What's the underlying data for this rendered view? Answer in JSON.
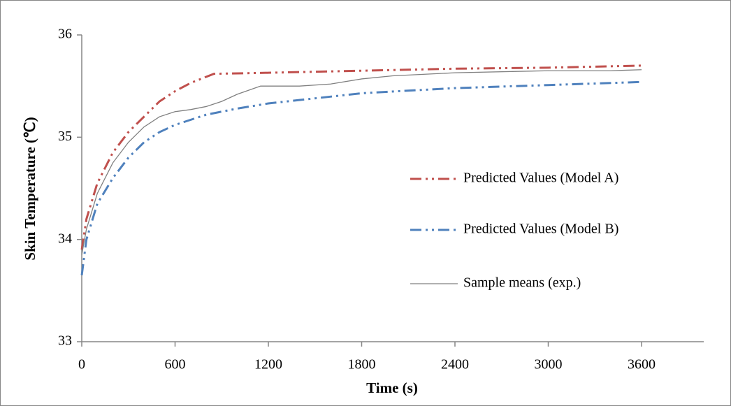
{
  "chart_data": {
    "type": "line",
    "x_label": "Time (s)",
    "y_label": "Skin Temperature  (℃)",
    "xlim": [
      0,
      4000
    ],
    "xticks": [
      0,
      600,
      1200,
      1800,
      2400,
      3000,
      3600
    ],
    "ylim": [
      33,
      36
    ],
    "yticks": [
      33,
      34,
      35,
      36
    ],
    "legend": "right",
    "series": [
      {
        "name": "Predicted Values (Model A)",
        "color": "#c0504d",
        "style": "dash-dot-dot",
        "x": [
          0,
          30,
          100,
          200,
          300,
          400,
          500,
          600,
          700,
          850,
          1200,
          1800,
          2400,
          3000,
          3600
        ],
        "values": [
          33.9,
          34.2,
          34.55,
          34.85,
          35.05,
          35.2,
          35.35,
          35.45,
          35.53,
          35.62,
          35.63,
          35.65,
          35.67,
          35.68,
          35.7
        ]
      },
      {
        "name": "Predicted Values (Model B)",
        "color": "#4f81bd",
        "style": "dash-dot-dot",
        "x": [
          0,
          30,
          100,
          200,
          300,
          400,
          500,
          600,
          800,
          1000,
          1200,
          1800,
          2400,
          3000,
          3600
        ],
        "values": [
          33.65,
          34.0,
          34.35,
          34.6,
          34.8,
          34.95,
          35.05,
          35.12,
          35.22,
          35.28,
          35.33,
          35.43,
          35.48,
          35.51,
          35.54
        ]
      },
      {
        "name": "Sample means (exp.)",
        "color": "#808080",
        "style": "solid",
        "x": [
          0,
          30,
          100,
          200,
          300,
          400,
          500,
          600,
          700,
          800,
          900,
          1000,
          1150,
          1400,
          1600,
          1800,
          2000,
          2400,
          3000,
          3400,
          3600
        ],
        "values": [
          33.85,
          34.1,
          34.45,
          34.75,
          34.95,
          35.1,
          35.2,
          35.25,
          35.27,
          35.3,
          35.35,
          35.42,
          35.5,
          35.5,
          35.52,
          35.57,
          35.6,
          35.63,
          35.65,
          35.65,
          35.66
        ]
      }
    ]
  }
}
